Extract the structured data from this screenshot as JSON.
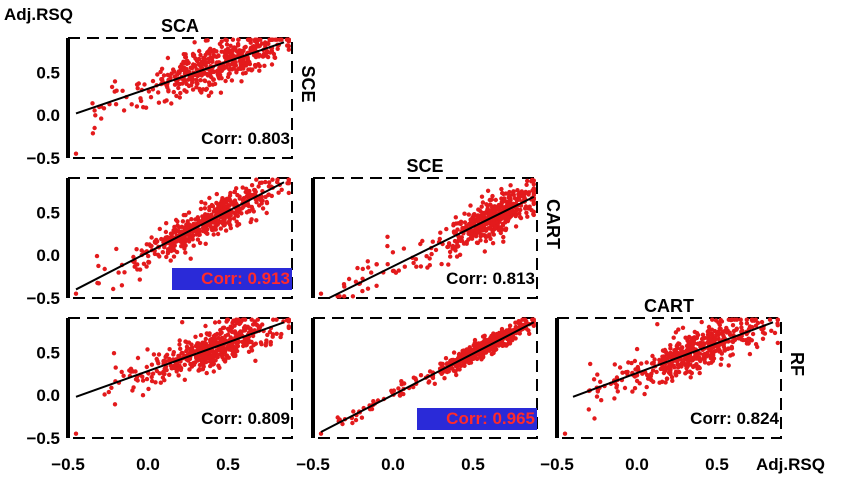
{
  "chart_data": {
    "type": "scatter",
    "xlabel": "Adj.RSQ",
    "ylabel": "Adj.RSQ",
    "xlim": [
      -0.5,
      0.9
    ],
    "ylim": [
      -0.5,
      0.9
    ],
    "xticks": [
      "−0.5",
      "0.0",
      "0.5"
    ],
    "yticks": [
      "−0.5",
      "0.0",
      "0.5"
    ],
    "column_titles": [
      "SCA",
      "SCE",
      "CART"
    ],
    "row_titles": [
      "SCE",
      "CART",
      "RF"
    ],
    "panels": [
      {
        "row": 0,
        "col": 0,
        "x_model": "SCA",
        "y_model": "SCE",
        "corr_label": "Corr: 0.803",
        "corr": 0.803,
        "highlight": false,
        "fit": {
          "x": [
            -0.45,
            0.85
          ],
          "y": [
            0.02,
            0.85
          ]
        },
        "cloud": {
          "center_x": 0.45,
          "center_y": 0.5,
          "spread_x": 0.2,
          "spread_y": 0.13
        }
      },
      {
        "row": 1,
        "col": 0,
        "x_model": "SCA",
        "y_model": "CART",
        "corr_label": "Corr: 0.913",
        "corr": 0.913,
        "highlight": true,
        "fit": {
          "x": [
            -0.45,
            0.85
          ],
          "y": [
            -0.4,
            0.85
          ]
        },
        "cloud": {
          "center_x": 0.42,
          "center_y": 0.45,
          "spread_x": 0.2,
          "spread_y": 0.1
        }
      },
      {
        "row": 1,
        "col": 1,
        "x_model": "SCE",
        "y_model": "CART",
        "corr_label": "Corr: 0.813",
        "corr": 0.813,
        "highlight": false,
        "fit": {
          "x": [
            -0.4,
            0.88
          ],
          "y": [
            -0.5,
            0.68
          ]
        },
        "cloud": {
          "center_x": 0.62,
          "center_y": 0.45,
          "spread_x": 0.15,
          "spread_y": 0.12
        }
      },
      {
        "row": 2,
        "col": 0,
        "x_model": "SCA",
        "y_model": "RF",
        "corr_label": "Corr: 0.809",
        "corr": 0.809,
        "highlight": false,
        "fit": {
          "x": [
            -0.45,
            0.85
          ],
          "y": [
            -0.02,
            0.85
          ]
        },
        "cloud": {
          "center_x": 0.42,
          "center_y": 0.5,
          "spread_x": 0.2,
          "spread_y": 0.12
        }
      },
      {
        "row": 2,
        "col": 1,
        "x_model": "SCE",
        "y_model": "RF",
        "corr_label": "Corr: 0.965",
        "corr": 0.965,
        "highlight": true,
        "fit": {
          "x": [
            -0.45,
            0.88
          ],
          "y": [
            -0.43,
            0.85
          ]
        },
        "cloud": {
          "center_x": 0.58,
          "center_y": 0.55,
          "spread_x": 0.15,
          "spread_y": 0.05
        }
      },
      {
        "row": 2,
        "col": 2,
        "x_model": "CART",
        "y_model": "RF",
        "corr_label": "Corr: 0.824",
        "corr": 0.824,
        "highlight": false,
        "fit": {
          "x": [
            -0.4,
            0.85
          ],
          "y": [
            -0.02,
            0.85
          ]
        },
        "cloud": {
          "center_x": 0.4,
          "center_y": 0.5,
          "spread_x": 0.2,
          "spread_y": 0.12
        }
      }
    ],
    "colors": {
      "points": "#e31a1c",
      "line": "#000000",
      "highlight_box": "#2a2ad8",
      "highlight_text": "#ff2a2a"
    }
  }
}
